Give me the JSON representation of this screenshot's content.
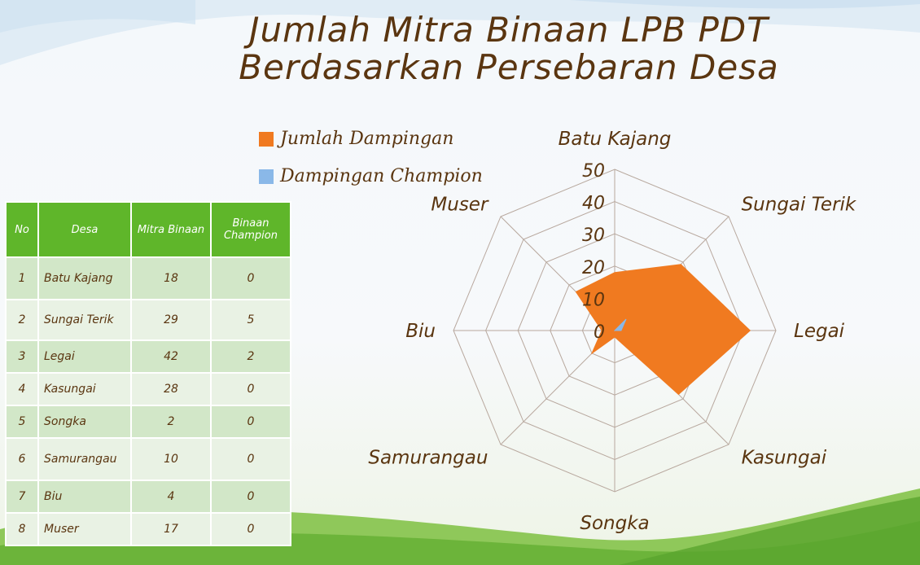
{
  "title": {
    "line1": "Jumlah Mitra Binaan LPB PDT",
    "line2": "Berdasarkan Persebaran Desa"
  },
  "colors": {
    "series1": "#f07a20",
    "series2": "#8ab8e8",
    "header_green": "#5fb62a",
    "text_brown": "#5a3510"
  },
  "chart_data": {
    "type": "radar",
    "categories": [
      "Batu Kajang",
      "Sungai Terik",
      "Legai",
      "Kasungai",
      "Songka",
      "Samurangau",
      "Biu",
      "Muser"
    ],
    "series": [
      {
        "name": "Jumlah Dampingan",
        "values": [
          18,
          29,
          42,
          28,
          2,
          10,
          4,
          17
        ]
      },
      {
        "name": "Dampingan Champion",
        "values": [
          0,
          5,
          2,
          0,
          0,
          0,
          0,
          0
        ]
      }
    ],
    "ticks": [
      "0",
      "10",
      "20",
      "30",
      "40",
      "50"
    ],
    "rmax": 50,
    "legend": "top-left"
  },
  "table": {
    "headers": [
      "No",
      "Desa",
      "Mitra Binaan",
      "Binaan Champion"
    ],
    "rows": [
      [
        "1",
        "Batu Kajang",
        "18",
        "0"
      ],
      [
        "2",
        "Sungai Terik",
        "29",
        "5"
      ],
      [
        "3",
        "Legai",
        "42",
        "2"
      ],
      [
        "4",
        "Kasungai",
        "28",
        "0"
      ],
      [
        "5",
        "Songka",
        "2",
        "0"
      ],
      [
        "6",
        "Samurangau",
        "10",
        "0"
      ],
      [
        "7",
        "Biu",
        "4",
        "0"
      ],
      [
        "8",
        "Muser",
        "17",
        "0"
      ]
    ]
  }
}
